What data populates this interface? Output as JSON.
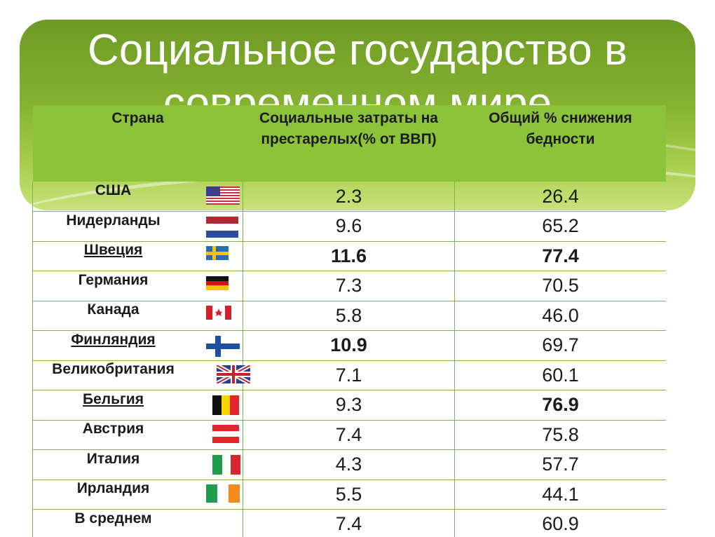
{
  "slide": {
    "title_line1": "Социальное государство в",
    "title_line2": "современном мире"
  },
  "table": {
    "headers": {
      "country": "Страна",
      "spending": "Социальные затраты на престарелых(% от ВВП)",
      "poverty": "Общий % снижения бедности"
    },
    "rows": [
      {
        "country": "США",
        "flag": "usa-flag-icon",
        "spending": "2.3",
        "poverty": "26.4",
        "underline": false,
        "bold_spending": false,
        "bold_poverty": false
      },
      {
        "country": "Нидерланды",
        "flag": "netherlands-flag-icon",
        "spending": "9.6",
        "poverty": "65.2",
        "underline": false,
        "bold_spending": false,
        "bold_poverty": false
      },
      {
        "country": "Швеция",
        "flag": "sweden-flag-icon",
        "spending": "11.6",
        "poverty": "77.4",
        "underline": true,
        "bold_spending": true,
        "bold_poverty": true
      },
      {
        "country": "Германия",
        "flag": "germany-flag-icon",
        "spending": "7.3",
        "poverty": "70.5",
        "underline": false,
        "bold_spending": false,
        "bold_poverty": false
      },
      {
        "country": "Канада",
        "flag": "canada-flag-icon",
        "spending": "5.8",
        "poverty": "46.0",
        "underline": false,
        "bold_spending": false,
        "bold_poverty": false
      },
      {
        "country": "Финляндия",
        "flag": "finland-flag-icon",
        "spending": "10.9",
        "poverty": "69.7",
        "underline": true,
        "bold_spending": true,
        "bold_poverty": false
      },
      {
        "country": "Великобритания",
        "flag": "uk-flag-icon",
        "spending": "7.1",
        "poverty": "60.1",
        "underline": false,
        "bold_spending": false,
        "bold_poverty": false
      },
      {
        "country": "Бельгия",
        "flag": "belgium-flag-icon",
        "spending": "9.3",
        "poverty": "76.9",
        "underline": true,
        "bold_spending": false,
        "bold_poverty": true
      },
      {
        "country": "Австрия",
        "flag": "austria-flag-icon",
        "spending": "7.4",
        "poverty": "75.8",
        "underline": false,
        "bold_spending": false,
        "bold_poverty": false
      },
      {
        "country": "Италия",
        "flag": "italy-flag-icon",
        "spending": "4.3",
        "poverty": "57.7",
        "underline": false,
        "bold_spending": false,
        "bold_poverty": false
      },
      {
        "country": "Ирландия",
        "flag": "ireland-flag-icon",
        "spending": "5.5",
        "poverty": "44.1",
        "underline": false,
        "bold_spending": false,
        "bold_poverty": false
      },
      {
        "country": "В среднем",
        "flag": "",
        "spending": "7.4",
        "poverty": "60.9",
        "underline": false,
        "bold_spending": false,
        "bold_poverty": false
      }
    ]
  },
  "colors": {
    "header_green": "#8dc33b",
    "banner_green": "#86b232",
    "grid_line": "#7fb24a"
  }
}
